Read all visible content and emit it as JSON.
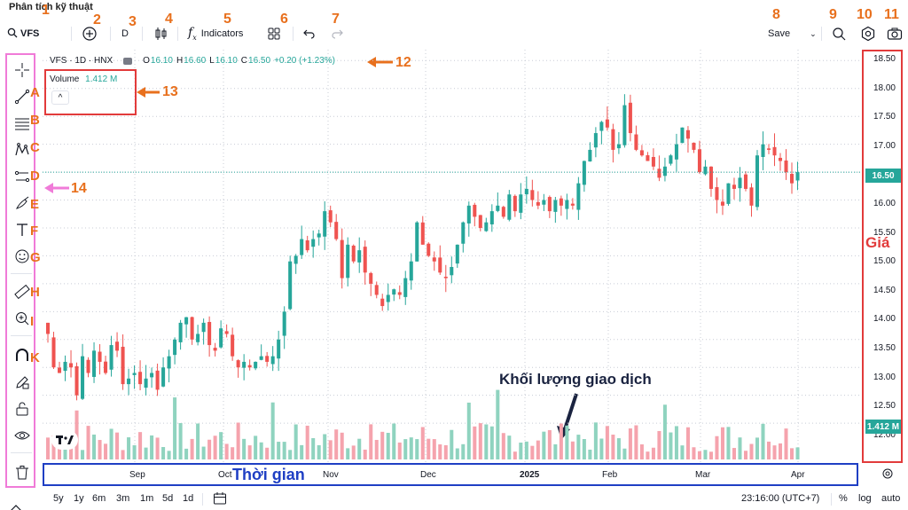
{
  "app_title": "Phân tích kỹ thuật",
  "toolbar": {
    "symbol": "VFS",
    "interval": "D",
    "indicators_label": "Indicators",
    "save_label": "Save"
  },
  "legend": {
    "symbol_line": "VFS · 1D · HNX",
    "o_label": "O",
    "o_value": "16.10",
    "h_label": "H",
    "h_value": "16.60",
    "l_label": "L",
    "l_value": "16.10",
    "c_label": "C",
    "c_value": "16.50",
    "change": "+0.20 (+1.23%)"
  },
  "volume": {
    "label": "Volume",
    "value": "1.412 M",
    "collapse": "^"
  },
  "price_axis": {
    "labels": [
      "18.50",
      "18.00",
      "17.50",
      "17.00",
      "16.50",
      "16.00",
      "15.50",
      "15.00",
      "14.50",
      "14.00",
      "13.50",
      "13.00",
      "12.50",
      "12.00"
    ],
    "current_price": "16.50",
    "current_volume": "1.412 M"
  },
  "time_axis": {
    "labels": [
      "Sep",
      "Oct",
      "Nov",
      "Dec",
      "2025",
      "Feb",
      "Mar",
      "Apr"
    ],
    "title": "Thời gian"
  },
  "annotations": {
    "numbers": [
      "1",
      "2",
      "3",
      "4",
      "5",
      "6",
      "7",
      "8",
      "9",
      "10",
      "11",
      "12",
      "13",
      "14"
    ],
    "letters": [
      "A",
      "B",
      "C",
      "D",
      "E",
      "F",
      "G",
      "H",
      "I",
      "K"
    ],
    "price_title": "Giá",
    "volume_title": "Khối lượng giao dịch"
  },
  "bottom": {
    "ranges": [
      "5y",
      "1y",
      "6m",
      "3m",
      "1m",
      "5d",
      "1d"
    ],
    "clock": "23:16:00 (UTC+7)",
    "percent": "%",
    "log": "log",
    "auto": "auto"
  },
  "colors": {
    "up": "#26a69a",
    "down": "#ef5350",
    "vol_up": "#8fd3bf",
    "vol_down": "#f5a3ad",
    "annotation_orange": "#e8701d",
    "box_red": "#e23b3b",
    "box_blue": "#1f3fc4",
    "box_pink": "#f07bd8"
  },
  "chart_data": {
    "type": "candlestick",
    "x_labels": [
      "Sep",
      "Oct",
      "Nov",
      "Dec",
      "2025",
      "Feb",
      "Mar",
      "Apr"
    ],
    "ylim": [
      11.7,
      18.6
    ],
    "close": [
      13.6,
      13.0,
      12.9,
      13.1,
      13.0,
      12.5,
      13.2,
      12.9,
      13.3,
      13.1,
      12.9,
      13.4,
      13.3,
      12.7,
      12.8,
      12.9,
      12.7,
      12.8,
      12.9,
      12.6,
      13.0,
      13.2,
      13.5,
      13.8,
      13.9,
      13.5,
      13.6,
      13.8,
      13.4,
      13.3,
      13.7,
      13.6,
      13.2,
      13.0,
      13.1,
      13.0,
      13.1,
      13.2,
      13.1,
      13.2,
      13.5,
      14.0,
      14.9,
      15.0,
      15.3,
      15.1,
      15.3,
      15.4,
      15.8,
      15.6,
      15.3,
      14.6,
      15.2,
      14.9,
      15.1,
      14.7,
      14.5,
      14.3,
      14.1,
      14.3,
      14.4,
      14.3,
      14.6,
      14.9,
      15.6,
      15.2,
      15.0,
      14.9,
      14.7,
      14.6,
      14.8,
      15.2,
      15.6,
      15.9,
      15.7,
      15.5,
      15.6,
      15.8,
      15.9,
      15.7,
      16.1,
      15.8,
      16.1,
      16.2,
      16.0,
      15.9,
      16.0,
      15.8,
      16.0,
      15.9,
      16.0,
      15.9,
      16.3,
      16.7,
      16.9,
      17.2,
      17.4,
      17.3,
      16.9,
      17.0,
      17.7,
      17.2,
      16.9,
      16.8,
      16.7,
      16.6,
      16.4,
      16.6,
      16.8,
      17.0,
      17.3,
      17.1,
      16.9,
      16.5,
      16.6,
      16.2,
      16.0,
      15.9,
      16.3,
      16.2,
      16.4,
      16.2,
      15.9,
      16.8,
      17.0,
      16.9,
      16.8,
      16.7,
      16.5,
      16.3,
      16.5
    ],
    "volume_bars": 140
  }
}
